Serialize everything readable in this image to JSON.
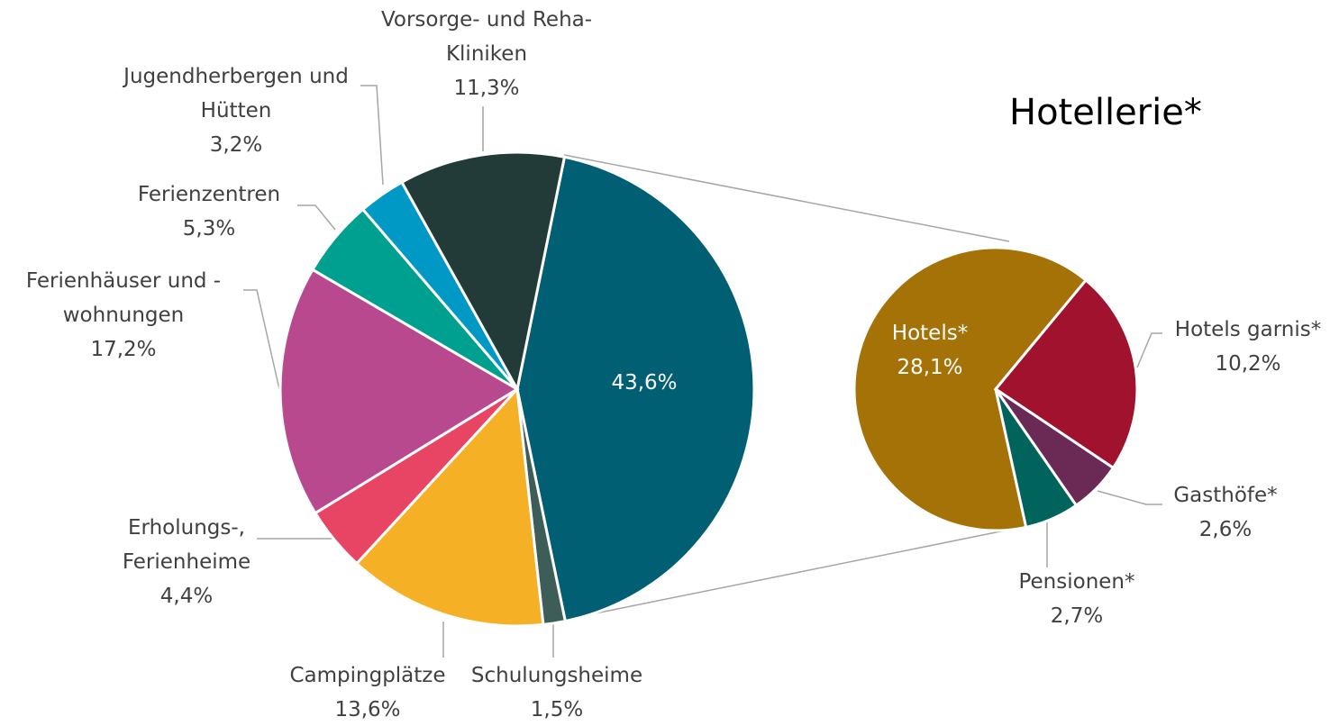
{
  "chart_data": [
    {
      "type": "pie",
      "categories": [
        null,
        "Schulungsheime",
        "Campingplätze",
        "Erholungs-,\nFerienheime",
        "Ferienhäuser und -\nwohnungen",
        "Ferienzentren",
        "Jugendherbergen und\nHütten",
        "Vorsorge- und Reha-\nKliniken"
      ],
      "values": [
        43.6,
        1.5,
        13.6,
        4.4,
        17.2,
        5.3,
        3.2,
        11.3
      ],
      "value_labels": [
        "43,6%",
        "1,5%",
        "13,6%",
        "4,4%",
        "17,2%",
        "5,3%",
        "3,2%",
        "11,3%"
      ],
      "colors": [
        "#005f73",
        "#3d5e58",
        "#f6b026",
        "#e84463",
        "#b8498f",
        "#00a091",
        "#0099c5",
        "#233b38"
      ]
    },
    {
      "type": "pie",
      "title": "Hotellerie*",
      "categories": [
        "Hotels*",
        "Hotels garnis*",
        "Gasthöfe*",
        "Pensionen*"
      ],
      "values": [
        28.1,
        10.2,
        2.6,
        2.7
      ],
      "value_labels": [
        "28,1%",
        "10,2%",
        "2,6%",
        "2,7%"
      ],
      "colors": [
        "#a57207",
        "#a0122e",
        "#6b2a56",
        "#00645c"
      ]
    }
  ]
}
